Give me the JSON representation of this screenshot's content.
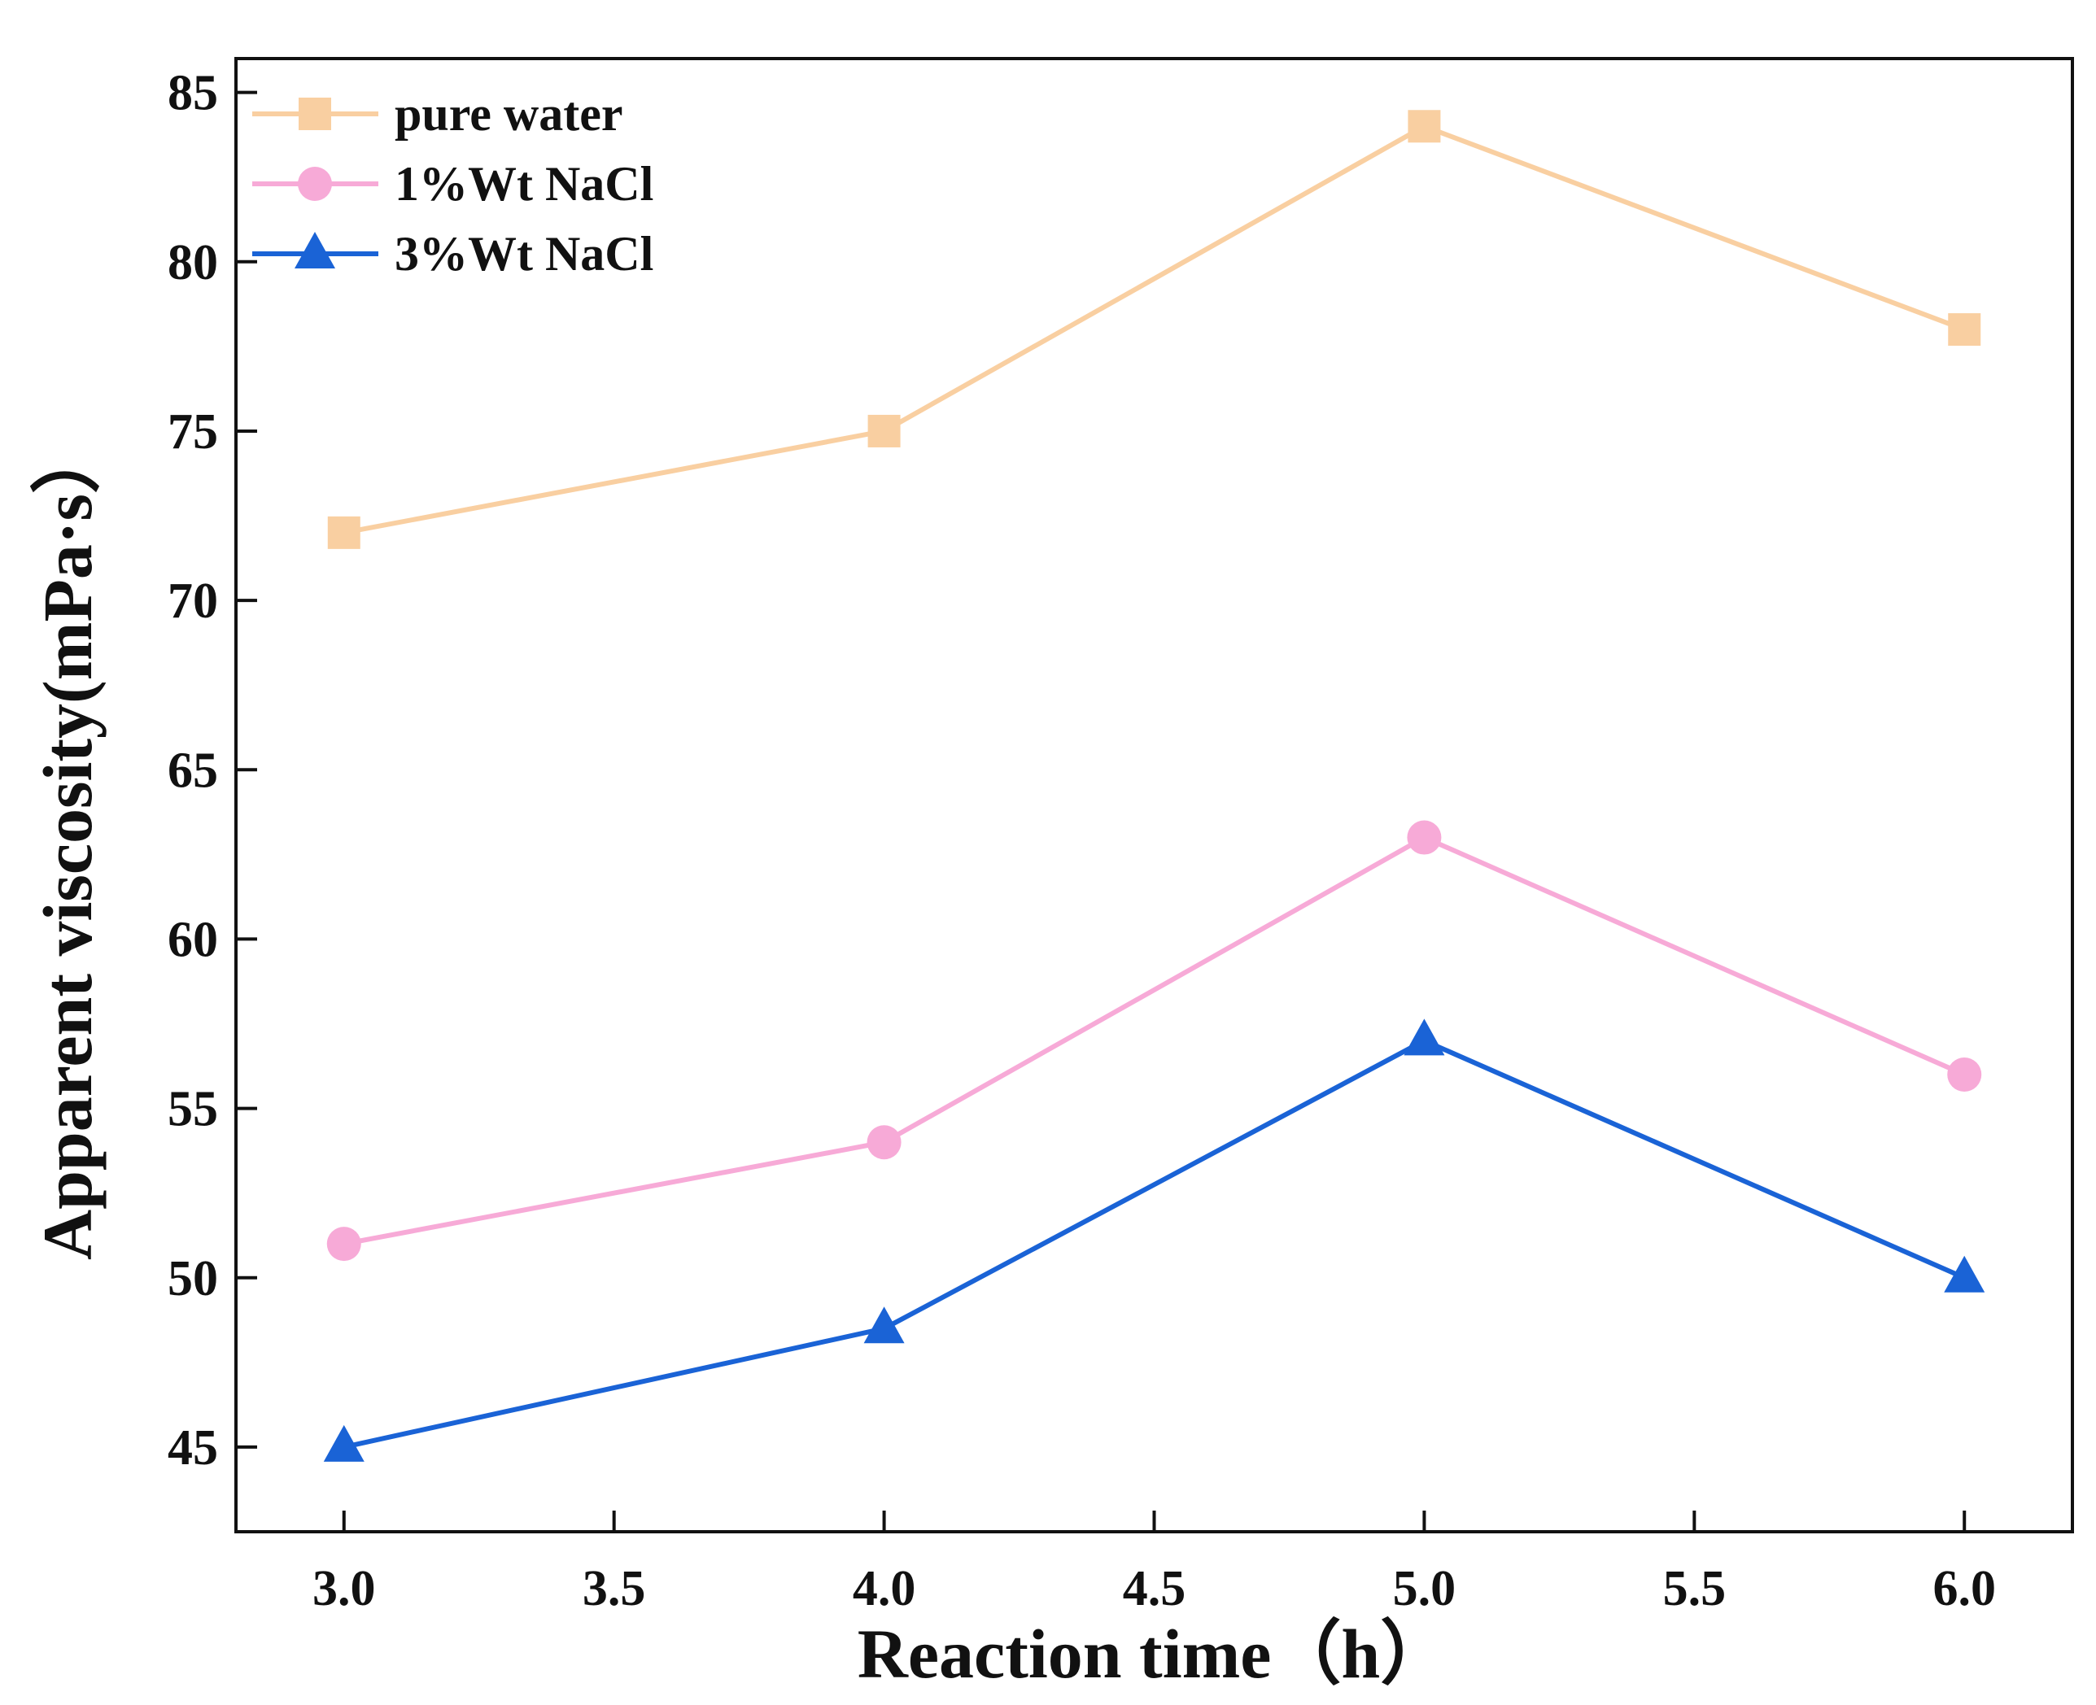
{
  "chart_data": {
    "type": "line",
    "title": "",
    "xlabel": "Reaction time（h）",
    "ylabel": "Apparent viscosity(mPa·s）",
    "xlim": [
      2.8,
      6.2
    ],
    "ylim": [
      42.5,
      86
    ],
    "xticks": [
      3.0,
      3.5,
      4.0,
      4.5,
      5.0,
      5.5,
      6.0
    ],
    "xtick_labels": [
      "3.0",
      "3.5",
      "4.0",
      "4.5",
      "5.0",
      "5.5",
      "6.0"
    ],
    "yticks": [
      45,
      50,
      55,
      60,
      65,
      70,
      75,
      80,
      85
    ],
    "ytick_labels": [
      "45",
      "50",
      "55",
      "60",
      "65",
      "70",
      "75",
      "80",
      "85"
    ],
    "grid": false,
    "legend": "top-left",
    "x": [
      3.0,
      4.0,
      5.0,
      6.0
    ],
    "series": [
      {
        "name": "pure water",
        "values": [
          72,
          75,
          84,
          78
        ],
        "color": "#f9cfa1",
        "marker": "square"
      },
      {
        "name": "1%Wt NaCl",
        "values": [
          51,
          54,
          63,
          56
        ],
        "color": "#f7aad7",
        "marker": "circle"
      },
      {
        "name": "3%Wt NaCl",
        "values": [
          45,
          48.5,
          57,
          50
        ],
        "color": "#1a63d6",
        "marker": "triangle"
      }
    ]
  }
}
